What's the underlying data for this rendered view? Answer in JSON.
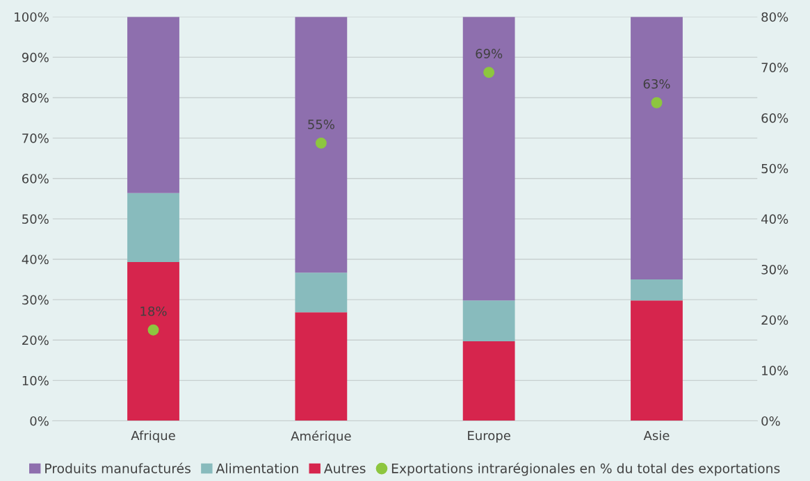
{
  "chart_data": {
    "type": "bar",
    "stacked": true,
    "categories": [
      "Afrique",
      "Amérique",
      "Europe",
      "Asie"
    ],
    "series": [
      {
        "name": "Autres",
        "color": "#d6254d",
        "values": [
          39.3,
          26.9,
          19.7,
          29.8
        ]
      },
      {
        "name": "Alimentation",
        "color": "#88bbbd",
        "values": [
          17.1,
          9.8,
          10.1,
          5.2
        ]
      },
      {
        "name": "Produits manufacturés",
        "color": "#8e6fae",
        "values": [
          43.6,
          63.3,
          70.2,
          65.0
        ]
      },
      {
        "name": "Exportations intrarégionales en % du total des exportations",
        "type": "scatter",
        "axis": "y2",
        "color": "#8dc63f",
        "values": [
          18,
          55,
          69,
          63
        ],
        "value_labels": [
          "18%",
          "55%",
          "69%",
          "63%"
        ]
      }
    ],
    "ylim": [
      0,
      100
    ],
    "yticks": [
      {
        "value": 0,
        "label": "0%"
      },
      {
        "value": 10,
        "label": "10%"
      },
      {
        "value": 20,
        "label": "20%"
      },
      {
        "value": 30,
        "label": "30%"
      },
      {
        "value": 40,
        "label": "40%"
      },
      {
        "value": 50,
        "label": "50%"
      },
      {
        "value": 60,
        "label": "60%"
      },
      {
        "value": 70,
        "label": "70%"
      },
      {
        "value": 80,
        "label": "80%"
      },
      {
        "value": 90,
        "label": "90%"
      },
      {
        "value": 100,
        "label": "100%"
      }
    ],
    "y2lim": [
      0,
      80
    ],
    "y2ticks": [
      {
        "value": 0,
        "label": "0%"
      },
      {
        "value": 10,
        "label": "10%"
      },
      {
        "value": 20,
        "label": "20%"
      },
      {
        "value": 30,
        "label": "30%"
      },
      {
        "value": 40,
        "label": "40%"
      },
      {
        "value": 50,
        "label": "50%"
      },
      {
        "value": 60,
        "label": "60%"
      },
      {
        "value": 70,
        "label": "70%"
      },
      {
        "value": 80,
        "label": "80%"
      }
    ],
    "grid": "y",
    "legend": "bottom",
    "marker": "circle"
  }
}
